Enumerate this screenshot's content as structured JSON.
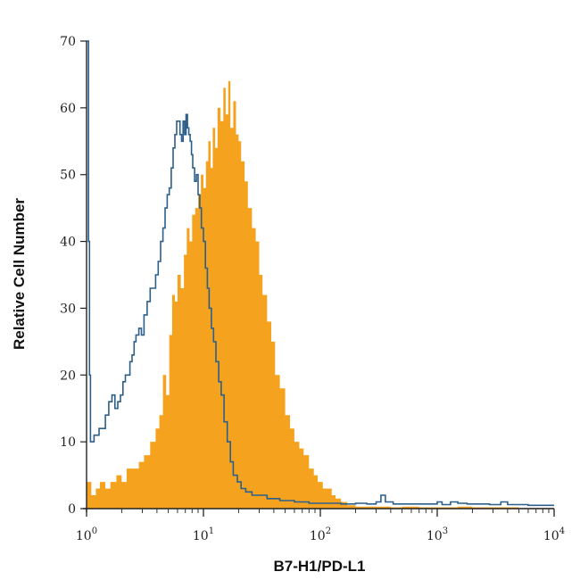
{
  "chart_data": {
    "type": "histogram",
    "xlabel": "B7-H1/PD-L1",
    "ylabel": "Relative Cell Number",
    "x_scale": "log",
    "xlim": [
      1,
      10000
    ],
    "ylim": [
      0,
      70
    ],
    "x_ticks": [
      {
        "value": 1,
        "base": "10",
        "exp": "0"
      },
      {
        "value": 10,
        "base": "10",
        "exp": "1"
      },
      {
        "value": 100,
        "base": "10",
        "exp": "2"
      },
      {
        "value": 1000,
        "base": "10",
        "exp": "3"
      },
      {
        "value": 10000,
        "base": "10",
        "exp": "4"
      }
    ],
    "y_ticks": [
      0,
      10,
      20,
      30,
      40,
      50,
      60,
      70
    ],
    "grid": false,
    "legend": "none",
    "series": [
      {
        "style": "filled",
        "color": "#f5a31f",
        "points": [
          [
            1.0,
            4
          ],
          [
            1.1,
            2
          ],
          [
            1.2,
            3
          ],
          [
            1.3,
            4
          ],
          [
            1.45,
            3
          ],
          [
            1.6,
            4
          ],
          [
            1.8,
            5
          ],
          [
            2.0,
            4
          ],
          [
            2.2,
            6
          ],
          [
            2.5,
            6
          ],
          [
            2.8,
            7
          ],
          [
            3.1,
            8
          ],
          [
            3.5,
            10
          ],
          [
            3.9,
            12
          ],
          [
            4.2,
            14
          ],
          [
            4.5,
            20
          ],
          [
            4.8,
            17
          ],
          [
            5.1,
            26
          ],
          [
            5.4,
            32
          ],
          [
            5.7,
            31
          ],
          [
            6.0,
            35
          ],
          [
            6.4,
            33
          ],
          [
            6.8,
            38
          ],
          [
            7.2,
            42
          ],
          [
            7.6,
            40
          ],
          [
            8.0,
            44
          ],
          [
            8.5,
            45
          ],
          [
            9.0,
            47
          ],
          [
            9.5,
            50
          ],
          [
            10.0,
            48
          ],
          [
            10.5,
            52
          ],
          [
            11.0,
            55
          ],
          [
            11.5,
            51
          ],
          [
            12.0,
            57
          ],
          [
            12.6,
            54
          ],
          [
            13.2,
            60
          ],
          [
            14.0,
            58
          ],
          [
            14.8,
            63
          ],
          [
            15.5,
            59
          ],
          [
            16.3,
            64
          ],
          [
            17.0,
            57
          ],
          [
            18.0,
            61
          ],
          [
            19.0,
            56
          ],
          [
            20.0,
            55
          ],
          [
            21.0,
            52
          ],
          [
            22.5,
            49
          ],
          [
            24.0,
            45
          ],
          [
            26.0,
            42
          ],
          [
            28.0,
            40
          ],
          [
            30.0,
            35
          ],
          [
            32.0,
            32
          ],
          [
            35.0,
            28
          ],
          [
            38.0,
            25
          ],
          [
            41.0,
            20
          ],
          [
            45.0,
            18
          ],
          [
            50.0,
            14
          ],
          [
            55.0,
            12
          ],
          [
            60.0,
            10
          ],
          [
            66.0,
            9
          ],
          [
            72.0,
            8
          ],
          [
            80.0,
            6
          ],
          [
            88.0,
            5
          ],
          [
            95.0,
            4
          ],
          [
            105.0,
            3
          ],
          [
            115.0,
            3
          ],
          [
            125.0,
            2
          ],
          [
            135.0,
            1.5
          ],
          [
            150.0,
            1
          ],
          [
            170.0,
            0.5
          ],
          [
            200.0,
            0.3
          ],
          [
            300.0,
            0.3
          ],
          [
            400.0,
            0.2
          ],
          [
            500.0,
            0.3
          ],
          [
            700.0,
            0.2
          ],
          [
            900.0,
            0.2
          ],
          [
            1500.0,
            0.3
          ],
          [
            2000.0,
            0.2
          ],
          [
            3000.0,
            0.2
          ],
          [
            5000.0,
            0.1
          ],
          [
            10000.0,
            0.1
          ]
        ]
      },
      {
        "style": "outline",
        "color": "#2c5f8a",
        "points": [
          [
            1.0,
            70
          ],
          [
            1.02,
            70
          ],
          [
            1.04,
            40
          ],
          [
            1.06,
            20
          ],
          [
            1.08,
            10
          ],
          [
            1.12,
            10
          ],
          [
            1.16,
            11
          ],
          [
            1.2,
            11
          ],
          [
            1.28,
            12
          ],
          [
            1.36,
            12
          ],
          [
            1.45,
            14
          ],
          [
            1.55,
            16
          ],
          [
            1.65,
            17
          ],
          [
            1.75,
            15
          ],
          [
            1.85,
            16
          ],
          [
            1.95,
            17
          ],
          [
            2.05,
            19
          ],
          [
            2.15,
            20
          ],
          [
            2.25,
            20
          ],
          [
            2.35,
            22
          ],
          [
            2.45,
            23
          ],
          [
            2.55,
            25
          ],
          [
            2.65,
            26
          ],
          [
            2.8,
            27
          ],
          [
            2.95,
            26
          ],
          [
            3.1,
            29
          ],
          [
            3.3,
            31
          ],
          [
            3.5,
            33
          ],
          [
            3.7,
            33
          ],
          [
            3.9,
            35
          ],
          [
            4.1,
            37
          ],
          [
            4.3,
            40
          ],
          [
            4.5,
            42
          ],
          [
            4.7,
            45
          ],
          [
            4.9,
            47
          ],
          [
            5.1,
            48
          ],
          [
            5.3,
            51
          ],
          [
            5.5,
            54
          ],
          [
            5.7,
            56
          ],
          [
            5.9,
            58
          ],
          [
            6.1,
            58
          ],
          [
            6.3,
            56
          ],
          [
            6.5,
            55
          ],
          [
            6.7,
            58
          ],
          [
            6.9,
            56
          ],
          [
            7.1,
            59
          ],
          [
            7.3,
            57
          ],
          [
            7.5,
            56
          ],
          [
            7.7,
            55
          ],
          [
            7.9,
            53
          ],
          [
            8.1,
            51
          ],
          [
            8.4,
            49
          ],
          [
            8.7,
            50
          ],
          [
            9.0,
            47
          ],
          [
            9.3,
            45
          ],
          [
            9.6,
            42
          ],
          [
            10.0,
            40
          ],
          [
            10.4,
            36
          ],
          [
            10.8,
            33
          ],
          [
            11.2,
            30
          ],
          [
            11.7,
            27
          ],
          [
            12.2,
            25
          ],
          [
            12.8,
            22
          ],
          [
            13.5,
            19
          ],
          [
            14.2,
            17
          ],
          [
            15.0,
            13
          ],
          [
            16.0,
            10
          ],
          [
            17.0,
            7
          ],
          [
            18.0,
            5
          ],
          [
            19.5,
            4
          ],
          [
            21.0,
            3
          ],
          [
            23.0,
            2.5
          ],
          [
            26.0,
            2
          ],
          [
            30.0,
            2
          ],
          [
            35.0,
            1.5
          ],
          [
            45.0,
            1.2
          ],
          [
            60.0,
            1
          ],
          [
            80.0,
            0.8
          ],
          [
            100.0,
            0.8
          ],
          [
            150.0,
            0.7
          ],
          [
            200.0,
            0.8
          ],
          [
            250.0,
            0.7
          ],
          [
            300.0,
            1
          ],
          [
            330.0,
            2
          ],
          [
            360.0,
            1
          ],
          [
            420.0,
            0.7
          ],
          [
            500.0,
            0.7
          ],
          [
            700.0,
            0.7
          ],
          [
            900.0,
            0.7
          ],
          [
            1000.0,
            1
          ],
          [
            1100.0,
            0.6
          ],
          [
            1300.0,
            1
          ],
          [
            1500.0,
            0.8
          ],
          [
            1800.0,
            0.7
          ],
          [
            2200.0,
            0.7
          ],
          [
            2800.0,
            0.6
          ],
          [
            3500.0,
            1
          ],
          [
            4000.0,
            0.6
          ],
          [
            6000.0,
            0.5
          ],
          [
            10000.0,
            0.5
          ]
        ]
      }
    ]
  }
}
